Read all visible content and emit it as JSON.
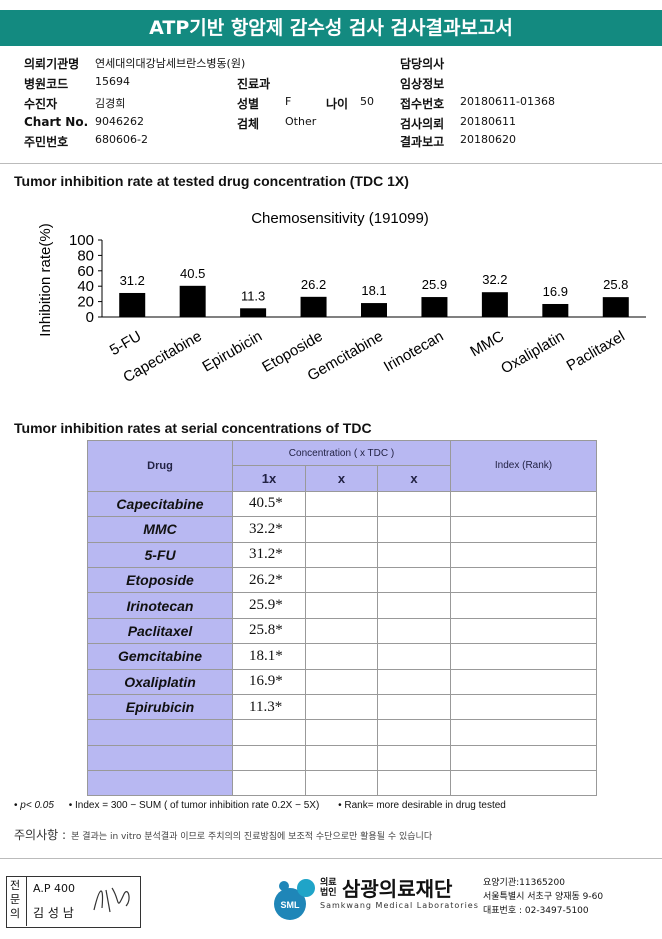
{
  "header": {
    "title": "ATP기반 항암제 감수성 검사 검사결과보고서"
  },
  "info": [
    {
      "label": "의뢰기관명",
      "value": "연세대의대강남세브란스병동(원)"
    },
    {
      "label": "담당의사"
    },
    {
      "label": "병원코드",
      "value": "15694"
    },
    {
      "label": "진료과"
    },
    {
      "label": "임상정보"
    },
    {
      "label": "수진자",
      "value": "김경희"
    },
    {
      "label": "성별",
      "value": "F"
    },
    {
      "label": "나이",
      "value": "50"
    },
    {
      "label": "접수번호",
      "value": "20180611-01368"
    },
    {
      "label": "Chart No.",
      "value": "9046262"
    },
    {
      "label": "검체",
      "value": "Other"
    },
    {
      "label": "검사의뢰",
      "value": "20180611"
    },
    {
      "label": "주민번호",
      "value": "680606-2"
    },
    {
      "label": "결과보고",
      "value": "20180620"
    }
  ],
  "section1_title": "Tumor inhibition rate at tested drug concentration (TDC 1X)",
  "chart_data": {
    "type": "bar",
    "title": "Chemosensitivity (191099)",
    "y_label": "Inhibition rate(%)",
    "categories": [
      "5-FU",
      "Capecitabine",
      "Epirubicin",
      "Etoposide",
      "Gemcitabine",
      "Irinotecan",
      "MMC",
      "Oxaliplatin",
      "Paclitaxel"
    ],
    "values": [
      31.2,
      40.5,
      11.3,
      26.2,
      18.1,
      25.9,
      32.2,
      16.9,
      25.8
    ],
    "color": "#000000",
    "ylim": [
      0,
      100
    ],
    "yticks": [
      0,
      20,
      40,
      60,
      80,
      100
    ]
  },
  "section2_title": "Tumor inhibition rates at serial concentrations of TDC",
  "table": {
    "headers": {
      "drug": "Drug",
      "concentration": "Concentration ( x TDC )",
      "conc_cols": [
        "1x",
        "x",
        "x"
      ],
      "index": "Index (Rank)"
    },
    "rows": [
      [
        "Capecitabine",
        "40.5*"
      ],
      [
        "MMC",
        "32.2*"
      ],
      [
        "5-FU",
        "31.2*"
      ],
      [
        "Etoposide",
        "26.2*"
      ],
      [
        "Irinotecan",
        "25.9*"
      ],
      [
        "Paclitaxel",
        "25.8*"
      ],
      [
        "Gemcitabine",
        "18.1*"
      ],
      [
        "Oxaliplatin",
        "16.9*"
      ],
      [
        "Epirubicin",
        "11.3*"
      ]
    ]
  },
  "footnotes": [
    "p< 0.05",
    "Index = 300 − SUM ( of tumor inhibition rate 0.2X − 5X)",
    "Rank= more desirable in drug tested"
  ],
  "notice": {
    "label": "주의사항 :",
    "text": "본 결과는 in vitro 분석결과 이므로 주치의의 진료방침에 보조적 수단으로만 활용될 수 있습니다"
  },
  "footer": {
    "specialist_label": "전문의",
    "doctor_id": "A.P 400",
    "doctor_name": "김 성 남",
    "logo": "SML",
    "org_type": [
      "의료",
      "법인"
    ],
    "org_name": "삼광의료재단",
    "org_english": "Samkwang Medical Laboratories",
    "contact": [
      "요양기관:11365200",
      "서울특별시 서초구 양재동 9-60",
      "대표번호 : 02-3497-5100"
    ]
  }
}
